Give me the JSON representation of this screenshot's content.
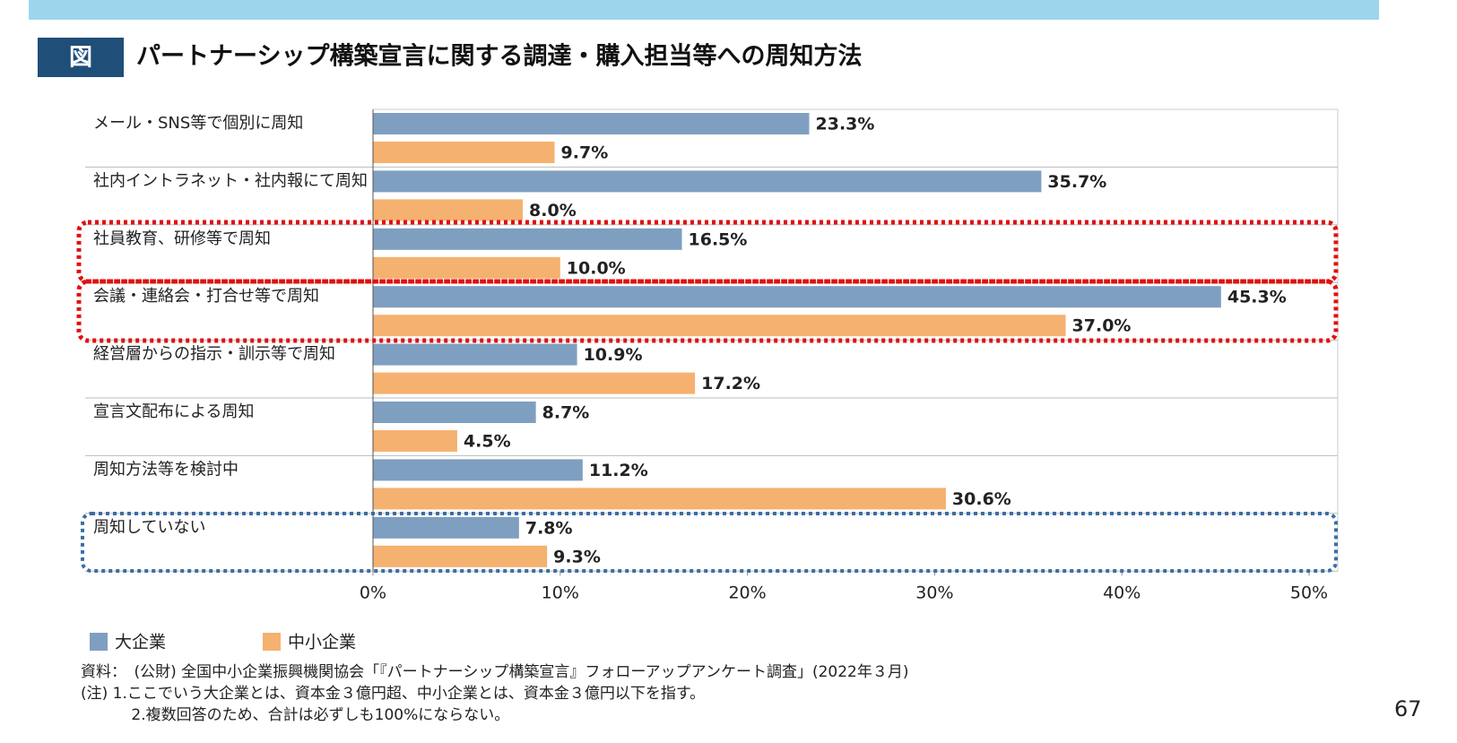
{
  "header": {
    "badge": "図"
  },
  "chart_data": {
    "type": "hbar",
    "title": "パートナーシップ構築宣言に関する調達・購入担当等への周知方法",
    "categories": [
      "メール・SNS等で個別に周知",
      "社内イントラネット・社内報にて周知",
      "社員教育、研修等で周知",
      "会議・連絡会・打合せ等で周知",
      "経営層からの指示・訓示等で周知",
      "宣言文配布による周知",
      "周知方法等を検討中",
      "周知していない"
    ],
    "series": [
      {
        "name": "大企業",
        "color": "#7f9fc1",
        "values": [
          23.3,
          35.7,
          16.5,
          45.3,
          10.9,
          8.7,
          11.2,
          7.8
        ],
        "value_labels": [
          "23.3%",
          "35.7%",
          "16.5%",
          "45.3%",
          "10.9%",
          "8.7%",
          "11.2%",
          "7.8%"
        ]
      },
      {
        "name": "中小企業",
        "color": "#f5b170",
        "values": [
          9.7,
          8.0,
          10.0,
          37.0,
          17.2,
          4.5,
          30.6,
          9.3
        ],
        "value_labels": [
          "9.7%",
          "8.0%",
          "10.0%",
          "37.0%",
          "17.2%",
          "4.5%",
          "30.6%",
          "9.3%"
        ]
      }
    ],
    "xlim": [
      0,
      50
    ],
    "xticks": [
      {
        "value": 0,
        "label": "0%"
      },
      {
        "value": 10,
        "label": "10%"
      },
      {
        "value": 20,
        "label": "20%"
      },
      {
        "value": 30,
        "label": "30%"
      },
      {
        "value": 40,
        "label": "40%"
      },
      {
        "value": 50,
        "label": "50%"
      }
    ],
    "legend": "bottom-left"
  },
  "notes": [
    "資料：　(公財) 全国中小企業振興機関協会「『パートナーシップ構築宣言』フォローアップアンケート調査」(2022年３月)",
    "(注) 1.ここでいう大企業とは、資本金３億円超、中小企業とは、資本金３億円以下を指す。",
    "　　　 2.複数回答のため、合計は必ずしも100%にならない。"
  ],
  "page_number": "67"
}
